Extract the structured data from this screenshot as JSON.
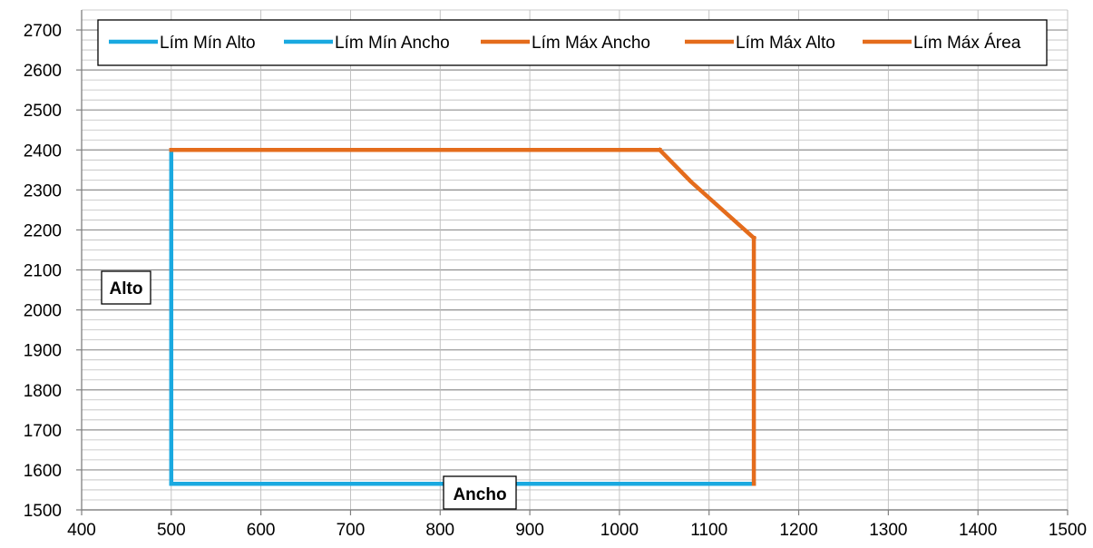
{
  "chart_data": {
    "type": "line",
    "title": "",
    "xlabel": "Ancho",
    "ylabel": "Alto",
    "xlim": [
      400,
      1500
    ],
    "ylim": [
      1500,
      2750
    ],
    "x_ticks": [
      400,
      500,
      600,
      700,
      800,
      900,
      1000,
      1100,
      1200,
      1300,
      1400,
      1500
    ],
    "y_ticks": [
      1500,
      1600,
      1700,
      1800,
      1900,
      2000,
      2100,
      2200,
      2300,
      2400,
      2500,
      2600,
      2700
    ],
    "grid": true,
    "legend_position": "top",
    "series": [
      {
        "name": "Lím Mín Alto",
        "color": "#1aa9e0",
        "points": [
          [
            500,
            1565
          ],
          [
            1150,
            1565
          ]
        ]
      },
      {
        "name": "Lím Mín Ancho",
        "color": "#1aa9e0",
        "points": [
          [
            500,
            1565
          ],
          [
            500,
            2400
          ]
        ]
      },
      {
        "name": "Lím Máx Ancho",
        "color": "#e46c1c",
        "points": [
          [
            1150,
            1565
          ],
          [
            1150,
            2180
          ]
        ]
      },
      {
        "name": "Lím Máx Alto",
        "color": "#e46c1c",
        "points": [
          [
            500,
            2400
          ],
          [
            1045,
            2400
          ]
        ]
      },
      {
        "name": "Lím Máx Área",
        "color": "#e46c1c",
        "points": [
          [
            1045,
            2400
          ],
          [
            1080,
            2320
          ],
          [
            1110,
            2260
          ],
          [
            1150,
            2180
          ]
        ]
      }
    ]
  }
}
